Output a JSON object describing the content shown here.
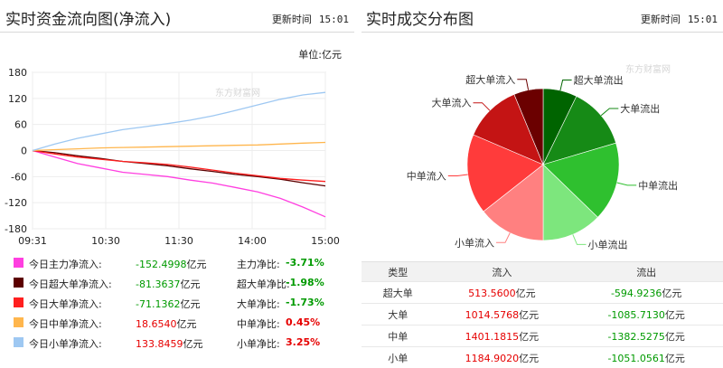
{
  "left_panel": {
    "title": "实时资金流向图(净流入)",
    "update_label": "更新时间",
    "update_time": "15:01",
    "unit": "单位:亿元",
    "watermark": "东方财富网"
  },
  "right_panel": {
    "title": "实时成交分布图",
    "update_label": "更新时间",
    "update_time": "15:01",
    "watermark": "东方财富网"
  },
  "chart_data": [
    {
      "type": "line",
      "x_ticks": [
        "09:31",
        "10:30",
        "11:30",
        "14:00",
        "15:00"
      ],
      "y_ticks": [
        180,
        120,
        60,
        0,
        -60,
        -120,
        -180
      ],
      "ylim": [
        -180,
        180
      ],
      "grid": true,
      "series": [
        {
          "name": "今日主力净流入",
          "color": "#ff3fe0",
          "values": [
            0,
            -15,
            -30,
            -40,
            -50,
            -55,
            -60,
            -68,
            -75,
            -85,
            -95,
            -110,
            -130,
            -152.4998
          ]
        },
        {
          "name": "今日超大单净流入",
          "color": "#5c0000",
          "values": [
            0,
            -5,
            -12,
            -18,
            -25,
            -30,
            -35,
            -42,
            -48,
            -55,
            -60,
            -66,
            -74,
            -81.3637
          ]
        },
        {
          "name": "今日大单净流入",
          "color": "#ff2020",
          "values": [
            0,
            -8,
            -15,
            -20,
            -25,
            -28,
            -32,
            -38,
            -45,
            -52,
            -58,
            -64,
            -68,
            -71.1362
          ]
        },
        {
          "name": "今日中单净流入",
          "color": "#ffb64d",
          "values": [
            0,
            2,
            4,
            6,
            7,
            8,
            9,
            10,
            11,
            12,
            13,
            15,
            17,
            18.654
          ]
        },
        {
          "name": "今日小单净流入",
          "color": "#9ec8f2",
          "values": [
            0,
            15,
            28,
            38,
            48,
            55,
            62,
            70,
            80,
            92,
            105,
            118,
            128,
            133.8459
          ]
        }
      ]
    },
    {
      "type": "pie",
      "slices": [
        {
          "label": "超大单流出",
          "value": 594.9236,
          "color": "#006400"
        },
        {
          "label": "大单流出",
          "value": 1085.713,
          "color": "#168a16"
        },
        {
          "label": "中单流出",
          "value": 1382.5275,
          "color": "#2fc02f"
        },
        {
          "label": "小单流出",
          "value": 1051.0561,
          "color": "#7de67d"
        },
        {
          "label": "小单流入",
          "value": 1184.902,
          "color": "#ff8080"
        },
        {
          "label": "中单流入",
          "value": 1401.1815,
          "color": "#ff3b3b"
        },
        {
          "label": "大单流入",
          "value": 1014.5768,
          "color": "#c41414"
        },
        {
          "label": "超大单流入",
          "value": 513.56,
          "color": "#6b0000"
        }
      ]
    }
  ],
  "legend": [
    {
      "name": "今日主力净流入:",
      "color": "#ff3fe0",
      "value": "-152.4998",
      "unit": "亿元",
      "ratio_label": "主力净比:",
      "ratio": "-3.71%",
      "sign": "neg",
      "value_sign": "neg"
    },
    {
      "name": "今日超大单净流入:",
      "color": "#5c0000",
      "value": "-81.3637",
      "unit": "亿元",
      "ratio_label": "超大单净比:",
      "ratio": "-1.98%",
      "sign": "neg",
      "value_sign": "neg"
    },
    {
      "name": "今日大单净流入:",
      "color": "#ff2020",
      "value": "-71.1362",
      "unit": "亿元",
      "ratio_label": "大单净比:",
      "ratio": "-1.73%",
      "sign": "neg",
      "value_sign": "neg"
    },
    {
      "name": "今日中单净流入:",
      "color": "#ffb64d",
      "value": "18.6540",
      "unit": "亿元",
      "ratio_label": "中单净比:",
      "ratio": "0.45%",
      "sign": "pos",
      "value_sign": "pos"
    },
    {
      "name": "今日小单净流入:",
      "color": "#9ec8f2",
      "value": "133.8459",
      "unit": "亿元",
      "ratio_label": "小单净比:",
      "ratio": "3.25%",
      "sign": "pos",
      "value_sign": "pos"
    }
  ],
  "table": {
    "headers": [
      "类型",
      "流入",
      "流出"
    ],
    "rows": [
      {
        "type": "超大单",
        "in": "513.5600",
        "out": "-594.9236"
      },
      {
        "type": "大单",
        "in": "1014.5768",
        "out": "-1085.7130"
      },
      {
        "type": "中单",
        "in": "1401.1815",
        "out": "-1382.5275"
      },
      {
        "type": "小单",
        "in": "1184.9020",
        "out": "-1051.0561"
      }
    ],
    "unit": "亿元"
  }
}
